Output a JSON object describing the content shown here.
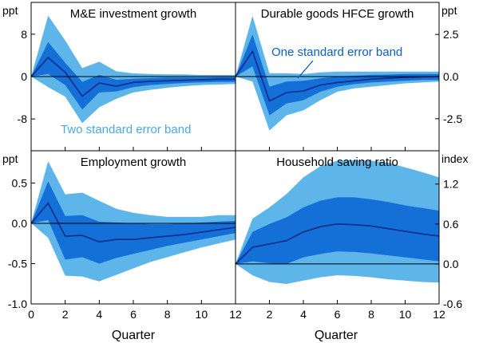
{
  "chart_data": {
    "type": "area",
    "x_axis_label": "Quarter",
    "x_ticks": [
      0,
      2,
      4,
      6,
      8,
      10,
      12
    ],
    "colors": {
      "two_se": "#5db5ea",
      "one_se": "#1470d6",
      "median": "#0a2a8c",
      "axis": "#000000"
    },
    "annotations": {
      "two_se": "Two standard error band",
      "one_se": "One standard error band"
    },
    "panels": [
      {
        "title": "M&E investment growth",
        "unit": "ppt",
        "unit_side": "left",
        "ylim": [
          -14,
          14
        ],
        "y_ticks": [
          8,
          0,
          -8
        ],
        "y_tick_labels": [
          "8",
          "0",
          "-8"
        ],
        "x": [
          0,
          1,
          2,
          3,
          4,
          5,
          6,
          7,
          8,
          9,
          10,
          11,
          12
        ],
        "median": [
          0,
          3.6,
          0.8,
          -3.7,
          -1.2,
          -1.8,
          -1.1,
          -0.9,
          -0.8,
          -0.7,
          -0.6,
          -0.5,
          -0.5
        ],
        "one_se_upper": [
          0,
          6.5,
          2.6,
          -1.0,
          0.3,
          -0.6,
          -0.4,
          -0.3,
          -0.2,
          -0.2,
          -0.2,
          -0.1,
          -0.1
        ],
        "one_se_lower": [
          0,
          0.5,
          -1.6,
          -6.2,
          -3.0,
          -2.8,
          -2.0,
          -1.6,
          -1.4,
          -1.2,
          -1.1,
          -1.0,
          -1.0
        ],
        "two_se_upper": [
          0,
          11.5,
          6.8,
          1.6,
          2.8,
          1.0,
          0.6,
          0.5,
          0.4,
          0.4,
          0.3,
          0.3,
          0.3
        ],
        "two_se_lower": [
          0,
          -2.0,
          -3.8,
          -8.8,
          -5.8,
          -4.2,
          -3.0,
          -2.5,
          -2.1,
          -1.8,
          -1.6,
          -1.5,
          -1.4
        ]
      },
      {
        "title": "Durable goods HFCE growth",
        "unit": "ppt",
        "unit_side": "right",
        "ylim": [
          -4.4,
          4.4
        ],
        "y_ticks": [
          2.5,
          0,
          -2.5
        ],
        "y_tick_labels": [
          "2.5",
          "0.0",
          "-2.5"
        ],
        "x": [
          0,
          1,
          2,
          3,
          4,
          5,
          6,
          7,
          8,
          9,
          10,
          11,
          12
        ],
        "median": [
          0,
          1.5,
          -1.45,
          -0.95,
          -0.85,
          -0.5,
          -0.35,
          -0.25,
          -0.15,
          -0.1,
          -0.05,
          -0.02,
          0
        ],
        "one_se_upper": [
          0,
          2.5,
          -0.6,
          -0.3,
          -0.25,
          -0.1,
          0,
          0.05,
          0.1,
          0.12,
          0.15,
          0.15,
          0.15
        ],
        "one_se_lower": [
          0,
          0.6,
          -2.3,
          -1.6,
          -1.4,
          -0.9,
          -0.6,
          -0.45,
          -0.35,
          -0.3,
          -0.25,
          -0.2,
          -0.2
        ],
        "two_se_upper": [
          0,
          3.6,
          0.2,
          0.2,
          0.15,
          0.25,
          0.3,
          0.3,
          0.3,
          0.3,
          0.3,
          0.3,
          0.3
        ],
        "two_se_lower": [
          0,
          -0.3,
          -3.2,
          -2.3,
          -2.0,
          -1.4,
          -0.9,
          -0.7,
          -0.6,
          -0.5,
          -0.4,
          -0.35,
          -0.3
        ]
      },
      {
        "title": "Employment growth",
        "unit": "ppt",
        "unit_side": "left",
        "ylim": [
          -1.0,
          0.9
        ],
        "y_ticks": [
          0.5,
          0.0,
          -0.5,
          -1.0
        ],
        "y_tick_labels": [
          "0.5",
          "0.0",
          "-0.5",
          "-1.0"
        ],
        "x": [
          0,
          1,
          2,
          3,
          4,
          5,
          6,
          7,
          8,
          9,
          10,
          11,
          12
        ],
        "median": [
          0,
          0.25,
          -0.16,
          -0.15,
          -0.23,
          -0.2,
          -0.2,
          -0.18,
          -0.16,
          -0.14,
          -0.11,
          -0.08,
          -0.05
        ],
        "one_se_upper": [
          0,
          0.52,
          0.09,
          0.1,
          0.02,
          0.01,
          0.0,
          -0.01,
          -0.01,
          0.0,
          0.01,
          0.02,
          0.03
        ],
        "one_se_lower": [
          0,
          0.04,
          -0.45,
          -0.42,
          -0.5,
          -0.43,
          -0.38,
          -0.33,
          -0.28,
          -0.24,
          -0.2,
          -0.16,
          -0.12
        ],
        "two_se_upper": [
          0,
          0.77,
          0.36,
          0.38,
          0.28,
          0.18,
          0.13,
          0.1,
          0.08,
          0.08,
          0.08,
          0.1,
          0.1
        ],
        "two_se_lower": [
          0,
          -0.18,
          -0.65,
          -0.66,
          -0.72,
          -0.64,
          -0.56,
          -0.48,
          -0.42,
          -0.36,
          -0.3,
          -0.25,
          -0.2
        ]
      },
      {
        "title": "Household saving ratio",
        "unit": "index",
        "unit_side": "right",
        "ylim": [
          -0.6,
          1.7
        ],
        "y_ticks": [
          1.2,
          0.6,
          0.0,
          -0.6
        ],
        "y_tick_labels": [
          "1.2",
          "0.6",
          "0.0",
          "-0.6"
        ],
        "x": [
          0,
          1,
          2,
          3,
          4,
          5,
          6,
          7,
          8,
          9,
          10,
          11,
          12
        ],
        "median": [
          0,
          0.25,
          0.3,
          0.35,
          0.48,
          0.56,
          0.6,
          0.59,
          0.57,
          0.53,
          0.49,
          0.45,
          0.42
        ],
        "one_se_upper": [
          0,
          0.48,
          0.6,
          0.7,
          0.85,
          0.95,
          1.0,
          1.0,
          0.97,
          0.93,
          0.88,
          0.84,
          0.8
        ],
        "one_se_lower": [
          0,
          0.04,
          0.01,
          0.0,
          0.1,
          0.15,
          0.19,
          0.18,
          0.16,
          0.13,
          0.1,
          0.07,
          0.04
        ],
        "two_se_upper": [
          0,
          0.68,
          0.85,
          1.05,
          1.3,
          1.47,
          1.55,
          1.56,
          1.55,
          1.52,
          1.45,
          1.38,
          1.3
        ],
        "two_se_lower": [
          0,
          -0.17,
          -0.27,
          -0.3,
          -0.25,
          -0.2,
          -0.17,
          -0.18,
          -0.2,
          -0.23,
          -0.25,
          -0.27,
          -0.28
        ]
      }
    ]
  }
}
